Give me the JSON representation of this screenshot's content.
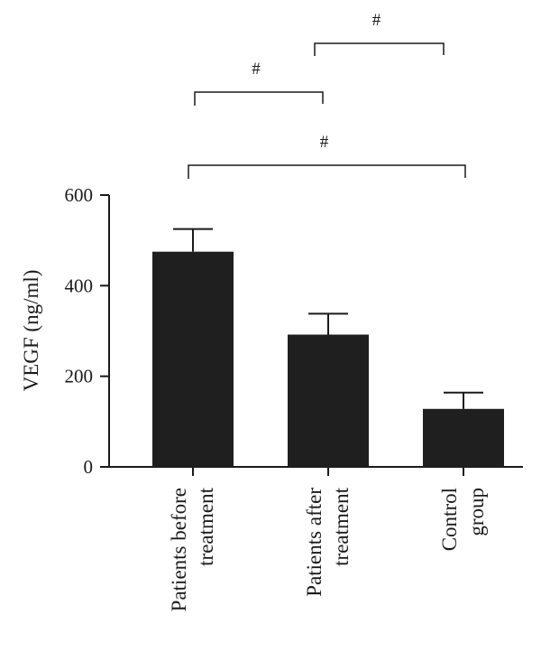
{
  "chart_data": {
    "type": "bar",
    "ylabel": "VEGF (ng/ml)",
    "ylim": [
      0,
      600
    ],
    "yticks": [
      0,
      200,
      400,
      600
    ],
    "categories": [
      [
        "Patients before",
        "treatment"
      ],
      [
        "Patients after",
        "treatment"
      ],
      [
        "Control",
        "group"
      ]
    ],
    "values": [
      475,
      292,
      128
    ],
    "errors": [
      50,
      46,
      36
    ],
    "bar_color": "#1f1f1f",
    "significance": [
      {
        "from": 0,
        "to": 1,
        "label": "#"
      },
      {
        "from": 1,
        "to": 2,
        "label": "#"
      },
      {
        "from": 0,
        "to": 2,
        "label": "#"
      }
    ]
  }
}
